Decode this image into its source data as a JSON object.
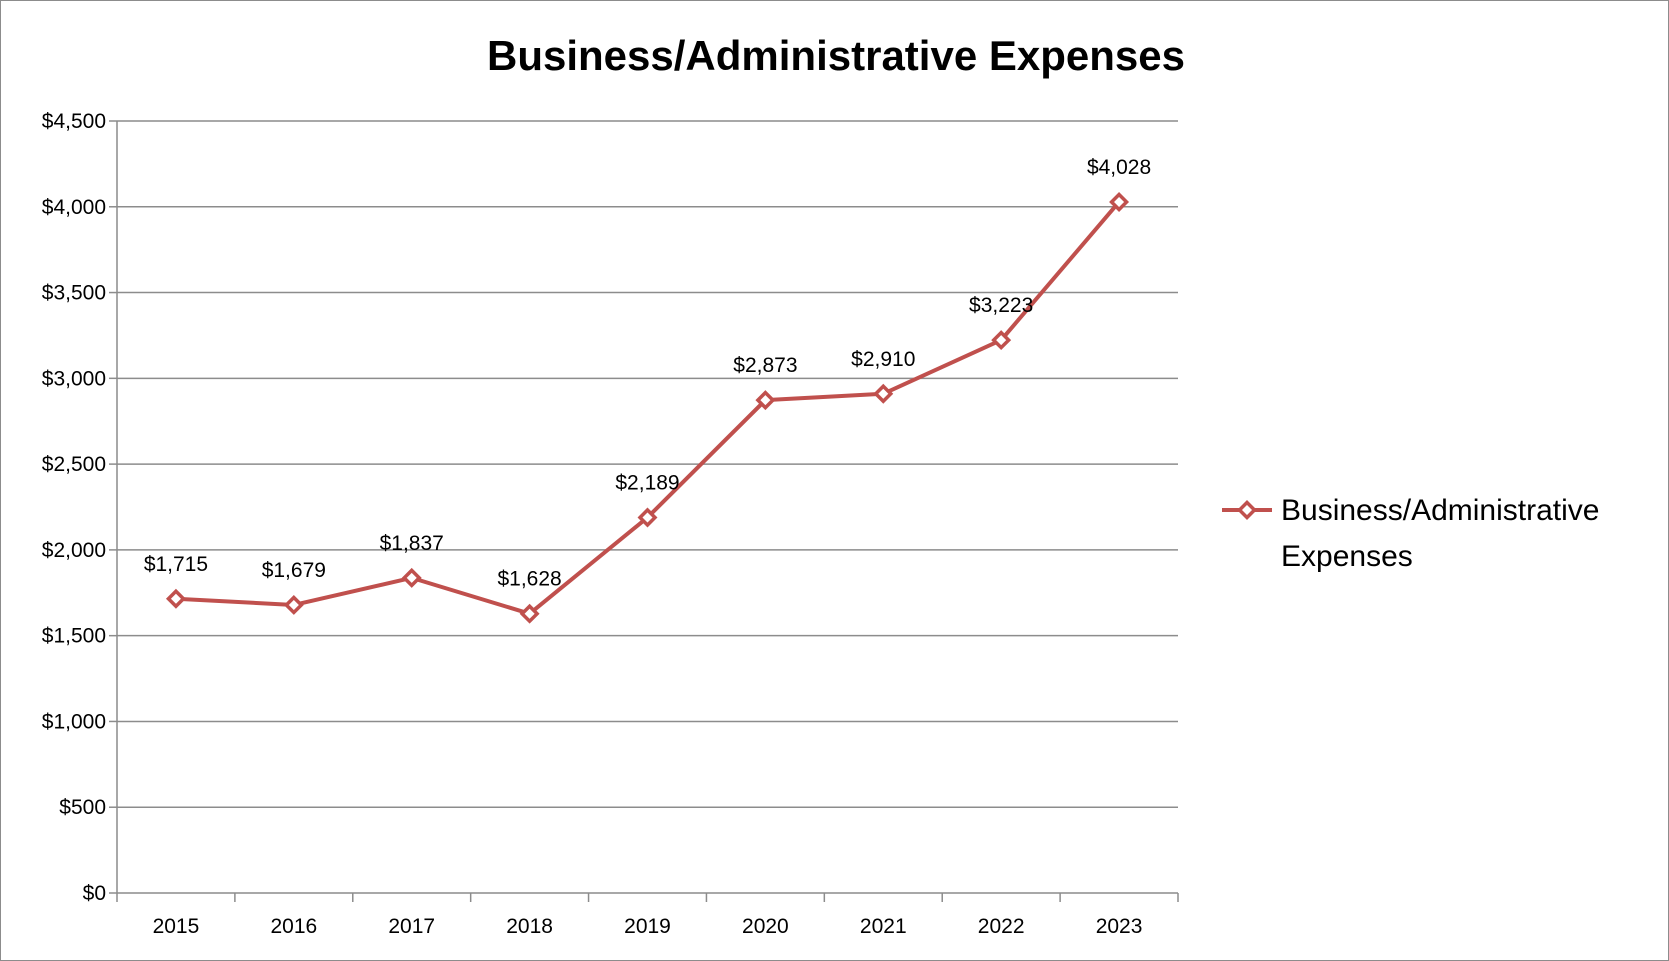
{
  "chart_data": {
    "type": "line",
    "title": "Business/Administrative Expenses",
    "xlabel": "",
    "ylabel": "",
    "categories": [
      "2015",
      "2016",
      "2017",
      "2018",
      "2019",
      "2020",
      "2021",
      "2022",
      "2023"
    ],
    "series": [
      {
        "name": "Business/Administrative Expenses",
        "values": [
          1715,
          1679,
          1837,
          1628,
          2189,
          2873,
          2910,
          3223,
          4028
        ],
        "data_labels": [
          "$1,715",
          "$1,679",
          "$1,837",
          "$1,628",
          "$2,189",
          "$2,873",
          "$2,910",
          "$3,223",
          "$4,028"
        ],
        "color": "#c0504d",
        "marker": "diamond-open"
      }
    ],
    "ylim": [
      0,
      4500
    ],
    "yticks": [
      0,
      500,
      1000,
      1500,
      2000,
      2500,
      3000,
      3500,
      4000,
      4500
    ],
    "ytick_labels": [
      "$0",
      "$500",
      "$1,000",
      "$1,500",
      "$2,000",
      "$2,500",
      "$3,000",
      "$3,500",
      "$4,000",
      "$4,500"
    ],
    "grid": true,
    "legend": "right",
    "legend_lines": [
      "Business/Administrative",
      "Expenses"
    ],
    "colors": {
      "series": "#c0504d",
      "gridline": "#8c8c8c",
      "axis": "#8c8c8c",
      "text": "#000000",
      "background": "#ffffff"
    }
  }
}
